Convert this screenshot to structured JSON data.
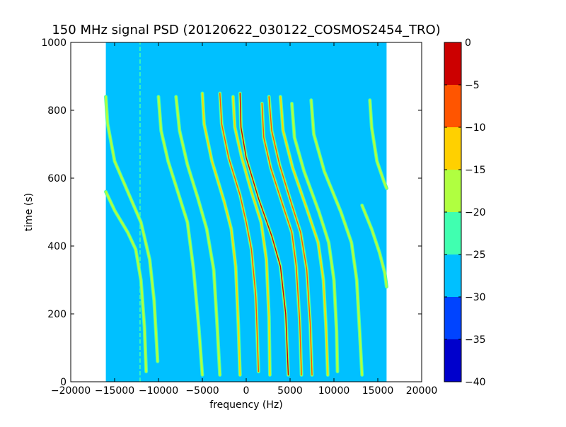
{
  "chart_data": {
    "type": "heatmap",
    "title": "150 MHz signal PSD (20120622_030122_COSMOS2454_TRO)",
    "xlabel": "frequency (Hz)",
    "ylabel": "time (s)",
    "xlim": [
      -20000,
      20000
    ],
    "ylim": [
      0,
      1000
    ],
    "x_ticks": [
      -20000,
      -15000,
      -10000,
      -5000,
      0,
      5000,
      10000,
      15000,
      20000
    ],
    "x_tick_labels": [
      "−20000",
      "−15000",
      "−10000",
      "−5000",
      "0",
      "5000",
      "10000",
      "15000",
      "20000"
    ],
    "y_ticks": [
      0,
      200,
      400,
      600,
      800,
      1000
    ],
    "y_tick_labels": [
      "0",
      "200",
      "400",
      "600",
      "800",
      "1000"
    ],
    "data_extent": {
      "x": [
        -16000,
        16000
      ],
      "y": [
        0,
        1000
      ]
    },
    "background_level": -27.5,
    "colorbar": {
      "levels": [
        -40,
        -35,
        -30,
        -25,
        -20,
        -15,
        -10,
        -5,
        0
      ],
      "tick_labels": [
        "−40",
        "−35",
        "−30",
        "−25",
        "−20",
        "−15",
        "−10",
        "−5",
        "0"
      ],
      "colors": [
        "#0000cc",
        "#0044ff",
        "#00c0ff",
        "#40ffb0",
        "#b0ff40",
        "#ffd000",
        "#ff5500",
        "#cc0000"
      ]
    },
    "vertical_line": {
      "x": -12100,
      "y": [
        0,
        1000
      ],
      "level": -22
    },
    "tracks": [
      {
        "points": [
          [
            -16000,
            840
          ],
          [
            -15800,
            760
          ],
          [
            -15000,
            650
          ],
          [
            -13000,
            530
          ],
          [
            -12000,
            470
          ],
          [
            -11000,
            360
          ],
          [
            -10500,
            240
          ],
          [
            -10100,
            60
          ]
        ],
        "peak_level": -20
      },
      {
        "points": [
          [
            -16000,
            560
          ],
          [
            -15000,
            505
          ],
          [
            -13500,
            440
          ],
          [
            -12600,
            390
          ],
          [
            -12000,
            300
          ],
          [
            -11600,
            160
          ],
          [
            -11400,
            30
          ]
        ],
        "peak_level": -20
      },
      {
        "points": [
          [
            -10000,
            840
          ],
          [
            -9700,
            740
          ],
          [
            -8900,
            650
          ],
          [
            -7800,
            560
          ],
          [
            -6700,
            470
          ],
          [
            -6000,
            330
          ],
          [
            -5400,
            160
          ],
          [
            -5000,
            20
          ]
        ],
        "peak_level": -17
      },
      {
        "points": [
          [
            -8000,
            840
          ],
          [
            -7600,
            740
          ],
          [
            -6700,
            640
          ],
          [
            -5500,
            540
          ],
          [
            -4500,
            450
          ],
          [
            -3700,
            330
          ],
          [
            -3300,
            160
          ],
          [
            -3000,
            20
          ]
        ],
        "peak_level": -17
      },
      {
        "points": [
          [
            -3000,
            850
          ],
          [
            -2800,
            760
          ],
          [
            -2000,
            660
          ],
          [
            -700,
            550
          ],
          [
            0,
            470
          ],
          [
            600,
            390
          ],
          [
            1100,
            250
          ],
          [
            1400,
            30
          ]
        ],
        "peak_level": -7
      },
      {
        "points": [
          [
            -1500,
            840
          ],
          [
            -1300,
            750
          ],
          [
            -500,
            660
          ],
          [
            600,
            560
          ],
          [
            1700,
            470
          ],
          [
            2300,
            360
          ],
          [
            2600,
            190
          ],
          [
            2700,
            20
          ]
        ],
        "peak_level": -12
      },
      {
        "points": [
          [
            -5000,
            850
          ],
          [
            -4800,
            760
          ],
          [
            -3900,
            650
          ],
          [
            -2500,
            530
          ],
          [
            -1700,
            450
          ],
          [
            -1200,
            340
          ],
          [
            -900,
            170
          ],
          [
            -700,
            20
          ]
        ],
        "peak_level": -12
      },
      {
        "points": [
          [
            -700,
            850
          ],
          [
            -600,
            750
          ],
          [
            0,
            660
          ],
          [
            1400,
            540
          ],
          [
            2900,
            430
          ],
          [
            3900,
            340
          ],
          [
            4500,
            200
          ],
          [
            4800,
            20
          ]
        ],
        "peak_level": -3
      },
      {
        "points": [
          [
            2600,
            840
          ],
          [
            2900,
            740
          ],
          [
            3800,
            640
          ],
          [
            5100,
            530
          ],
          [
            6200,
            440
          ],
          [
            6900,
            330
          ],
          [
            7300,
            170
          ],
          [
            7500,
            20
          ]
        ],
        "peak_level": -7
      },
      {
        "points": [
          [
            3900,
            840
          ],
          [
            4200,
            740
          ],
          [
            5300,
            630
          ],
          [
            6900,
            510
          ],
          [
            8200,
            410
          ],
          [
            8800,
            300
          ],
          [
            9100,
            160
          ],
          [
            9300,
            20
          ]
        ],
        "peak_level": -12
      },
      {
        "points": [
          [
            1800,
            820
          ],
          [
            2000,
            720
          ],
          [
            2800,
            630
          ],
          [
            4300,
            510
          ],
          [
            5200,
            440
          ],
          [
            5700,
            340
          ],
          [
            6100,
            180
          ],
          [
            6300,
            20
          ]
        ],
        "peak_level": -7
      },
      {
        "points": [
          [
            5200,
            820
          ],
          [
            5500,
            720
          ],
          [
            6600,
            620
          ],
          [
            8300,
            500
          ],
          [
            9400,
            410
          ],
          [
            10000,
            300
          ],
          [
            10300,
            150
          ],
          [
            10400,
            30
          ]
        ],
        "peak_level": -17
      },
      {
        "points": [
          [
            7400,
            830
          ],
          [
            7700,
            730
          ],
          [
            8900,
            620
          ],
          [
            10800,
            500
          ],
          [
            12000,
            410
          ],
          [
            12600,
            300
          ],
          [
            12900,
            160
          ],
          [
            13200,
            20
          ]
        ],
        "peak_level": -17
      },
      {
        "points": [
          [
            13200,
            520
          ],
          [
            14300,
            450
          ],
          [
            15200,
            380
          ],
          [
            15800,
            320
          ],
          [
            16000,
            280
          ]
        ],
        "peak_level": -20
      },
      {
        "points": [
          [
            14100,
            830
          ],
          [
            14300,
            750
          ],
          [
            14900,
            650
          ],
          [
            15700,
            590
          ],
          [
            16000,
            570
          ]
        ],
        "peak_level": -20
      }
    ]
  }
}
